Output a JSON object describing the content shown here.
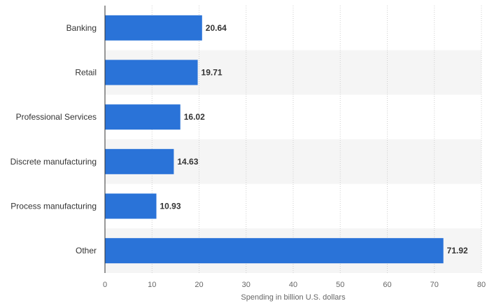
{
  "chart_data": {
    "type": "bar",
    "orientation": "horizontal",
    "categories": [
      "Banking",
      "Retail",
      "Professional Services",
      "Discrete manufacturing",
      "Process manufacturing",
      "Other"
    ],
    "values": [
      20.64,
      19.71,
      16.02,
      14.63,
      10.93,
      71.92
    ],
    "value_labels": [
      "20.64",
      "19.71",
      "16.02",
      "14.63",
      "10.93",
      "71.92"
    ],
    "x_ticks": [
      "0",
      "10",
      "20",
      "30",
      "40",
      "50",
      "60",
      "70",
      "80"
    ],
    "xlim": [
      0,
      80
    ],
    "xlabel": "Spending in billion U.S. dollars",
    "ylabel": "",
    "title": "",
    "grid": "vertical dotted lines",
    "legend": "none",
    "bar_color": "#2a73d8",
    "band_color": "#f5f5f5"
  }
}
